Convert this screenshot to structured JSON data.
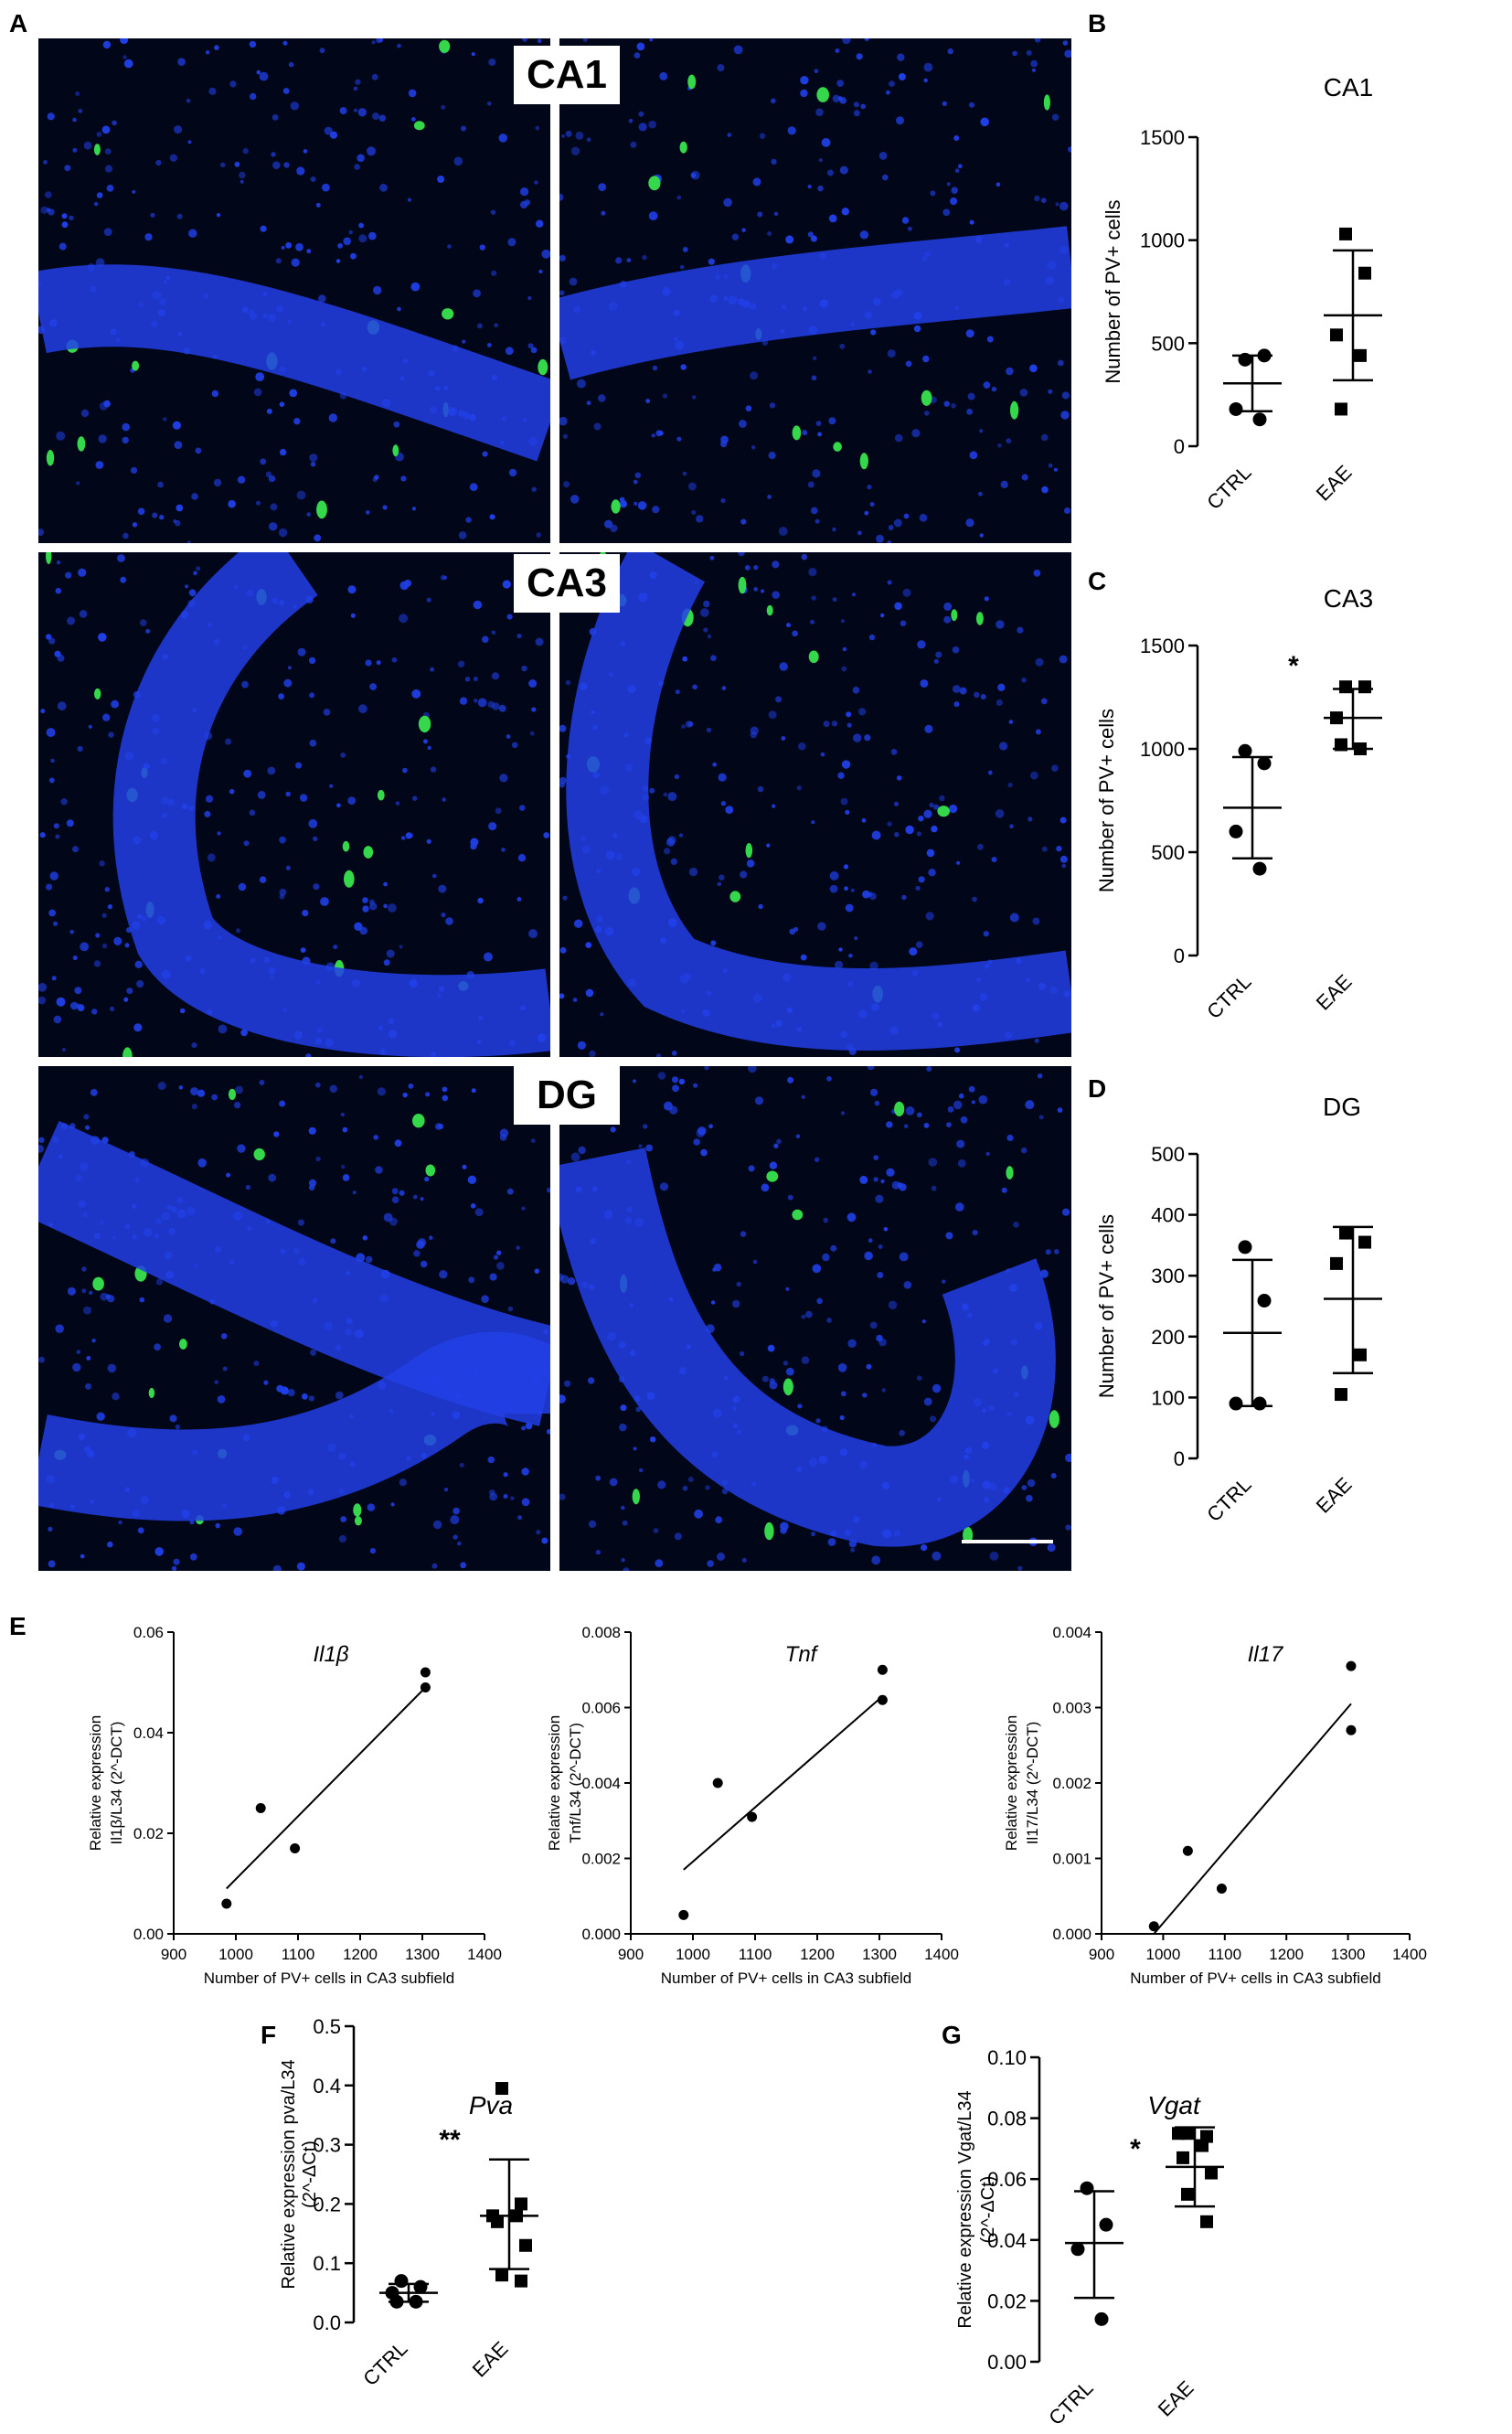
{
  "panels": {
    "A": "A",
    "B": "B",
    "C": "C",
    "D": "D",
    "E": "E",
    "F": "F",
    "G": "G"
  },
  "regions": [
    "CA1",
    "CA3",
    "DG"
  ],
  "colors": {
    "nuclei": "#1f3fe6",
    "pv_stain": "#35d84a",
    "background": "#010618",
    "marker": "#000000"
  },
  "chart_data": [
    {
      "id": "B",
      "type": "scatter",
      "title": "CA1",
      "xlabel": "",
      "ylabel": "Number of PV+ cells",
      "categories": [
        "CTRL",
        "EAE"
      ],
      "ylim": [
        0,
        1500
      ],
      "yticks": [
        0,
        500,
        1000,
        1500
      ],
      "series": [
        {
          "name": "CTRL",
          "marker": "circle",
          "values": [
            420,
            440,
            180,
            130
          ],
          "mean": 305,
          "sd_low": 170,
          "sd_high": 440
        },
        {
          "name": "EAE",
          "marker": "square",
          "values": [
            1030,
            840,
            540,
            440,
            180
          ],
          "mean": 635,
          "sd_low": 320,
          "sd_high": 950
        }
      ],
      "annotation": ""
    },
    {
      "id": "C",
      "type": "scatter",
      "title": "CA3",
      "xlabel": "",
      "ylabel": "Number of PV+ cells",
      "categories": [
        "CTRL",
        "EAE"
      ],
      "ylim": [
        0,
        1500
      ],
      "yticks": [
        0,
        500,
        1000,
        1500
      ],
      "series": [
        {
          "name": "CTRL",
          "marker": "circle",
          "values": [
            990,
            930,
            600,
            420
          ],
          "mean": 715,
          "sd_low": 470,
          "sd_high": 960
        },
        {
          "name": "EAE",
          "marker": "square",
          "values": [
            1300,
            1300,
            1150,
            1000,
            1020
          ],
          "mean": 1150,
          "sd_low": 1000,
          "sd_high": 1290
        }
      ],
      "annotation": "*"
    },
    {
      "id": "D",
      "type": "scatter",
      "title": "DG",
      "xlabel": "",
      "ylabel": "Number of PV+ cells",
      "categories": [
        "CTRL",
        "EAE"
      ],
      "ylim": [
        0,
        500
      ],
      "yticks": [
        0,
        100,
        200,
        300,
        400,
        500
      ],
      "series": [
        {
          "name": "CTRL",
          "marker": "circle",
          "values": [
            347,
            259,
            90,
            90
          ],
          "mean": 206,
          "sd_low": 86,
          "sd_high": 326
        },
        {
          "name": "EAE",
          "marker": "square",
          "values": [
            370,
            355,
            320,
            170,
            105
          ],
          "mean": 262,
          "sd_low": 140,
          "sd_high": 380
        }
      ],
      "annotation": ""
    },
    {
      "id": "E1",
      "type": "scatter",
      "title": "Il1β",
      "xlabel": "Number of PV+ cells in CA3 subfield",
      "ylabel_line1": "Relative expression",
      "ylabel_line2": "Il1β/L34 (2^-DCT)",
      "xlim": [
        900,
        1400
      ],
      "xticks": [
        900,
        1000,
        1100,
        1200,
        1300,
        1400
      ],
      "ylim": [
        0,
        0.06
      ],
      "yticks": [
        "0.00",
        "0.02",
        "0.04",
        "0.06"
      ],
      "points": [
        [
          985,
          0.006
        ],
        [
          1040,
          0.025
        ],
        [
          1095,
          0.017
        ],
        [
          1305,
          0.052
        ],
        [
          1305,
          0.049
        ]
      ],
      "fit": [
        [
          985,
          0.009
        ],
        [
          1305,
          0.049
        ]
      ]
    },
    {
      "id": "E2",
      "type": "scatter",
      "title": "Tnf",
      "xlabel": "Number of PV+ cells in CA3 subfield",
      "ylabel_line1": "Relative expression",
      "ylabel_line2": "Tnf/L34 (2^-DCT)",
      "xlim": [
        900,
        1400
      ],
      "xticks": [
        900,
        1000,
        1100,
        1200,
        1300,
        1400
      ],
      "ylim": [
        0,
        0.008
      ],
      "yticks": [
        "0.000",
        "0.002",
        "0.004",
        "0.006",
        "0.008"
      ],
      "points": [
        [
          985,
          0.0005
        ],
        [
          1040,
          0.004
        ],
        [
          1095,
          0.0031
        ],
        [
          1305,
          0.007
        ],
        [
          1305,
          0.0062
        ]
      ],
      "fit": [
        [
          985,
          0.0017
        ],
        [
          1305,
          0.0063
        ]
      ]
    },
    {
      "id": "E3",
      "type": "scatter",
      "title": "Il17",
      "xlabel": "Number of PV+ cells in CA3 subfield",
      "ylabel_line1": "Relative expression",
      "ylabel_line2": "Il17/L34 (2^-DCT)",
      "xlim": [
        900,
        1400
      ],
      "xticks": [
        900,
        1000,
        1100,
        1200,
        1300,
        1400
      ],
      "ylim": [
        0,
        0.004
      ],
      "yticks": [
        "0.000",
        "0.001",
        "0.002",
        "0.003",
        "0.004"
      ],
      "points": [
        [
          985,
          0.0001
        ],
        [
          1040,
          0.0011
        ],
        [
          1095,
          0.0006
        ],
        [
          1305,
          0.00355
        ],
        [
          1305,
          0.0027
        ]
      ],
      "fit": [
        [
          985,
          0
        ],
        [
          1305,
          0.00305
        ]
      ]
    },
    {
      "id": "F",
      "type": "scatter",
      "title": "Pva",
      "xlabel": "",
      "ylabel_line1": "Relative expression pva/L34",
      "ylabel_line2": "(2^-ΔCt)",
      "categories": [
        "CTRL",
        "EAE"
      ],
      "ylim": [
        0,
        0.5
      ],
      "yticks": [
        "0.0",
        "0.1",
        "0.2",
        "0.3",
        "0.4",
        "0.5"
      ],
      "series": [
        {
          "name": "CTRL",
          "marker": "circle",
          "values": [
            0.07,
            0.06,
            0.05,
            0.035,
            0.035
          ],
          "mean": 0.05,
          "sd_low": 0.035,
          "sd_high": 0.065
        },
        {
          "name": "EAE",
          "marker": "square",
          "values": [
            0.395,
            0.2,
            0.18,
            0.18,
            0.17,
            0.13,
            0.08,
            0.07
          ],
          "mean": 0.18,
          "sd_low": 0.09,
          "sd_high": 0.275
        }
      ],
      "annotation": "**"
    },
    {
      "id": "G",
      "type": "scatter",
      "title": "Vgat",
      "xlabel": "",
      "ylabel_line1": "Relative expression Vgat/L34",
      "ylabel_line2": "(2^-ΔCt)",
      "categories": [
        "CTRL",
        "EAE"
      ],
      "ylim": [
        0,
        0.1
      ],
      "yticks": [
        "0.00",
        "0.02",
        "0.04",
        "0.06",
        "0.08",
        "0.10"
      ],
      "series": [
        {
          "name": "CTRL",
          "marker": "circle",
          "values": [
            0.057,
            0.045,
            0.037,
            0.014
          ],
          "mean": 0.039,
          "sd_low": 0.021,
          "sd_high": 0.056
        },
        {
          "name": "EAE",
          "marker": "square",
          "values": [
            0.075,
            0.074,
            0.075,
            0.071,
            0.067,
            0.062,
            0.055,
            0.046
          ],
          "mean": 0.064,
          "sd_low": 0.051,
          "sd_high": 0.077
        }
      ],
      "annotation": "*"
    }
  ]
}
